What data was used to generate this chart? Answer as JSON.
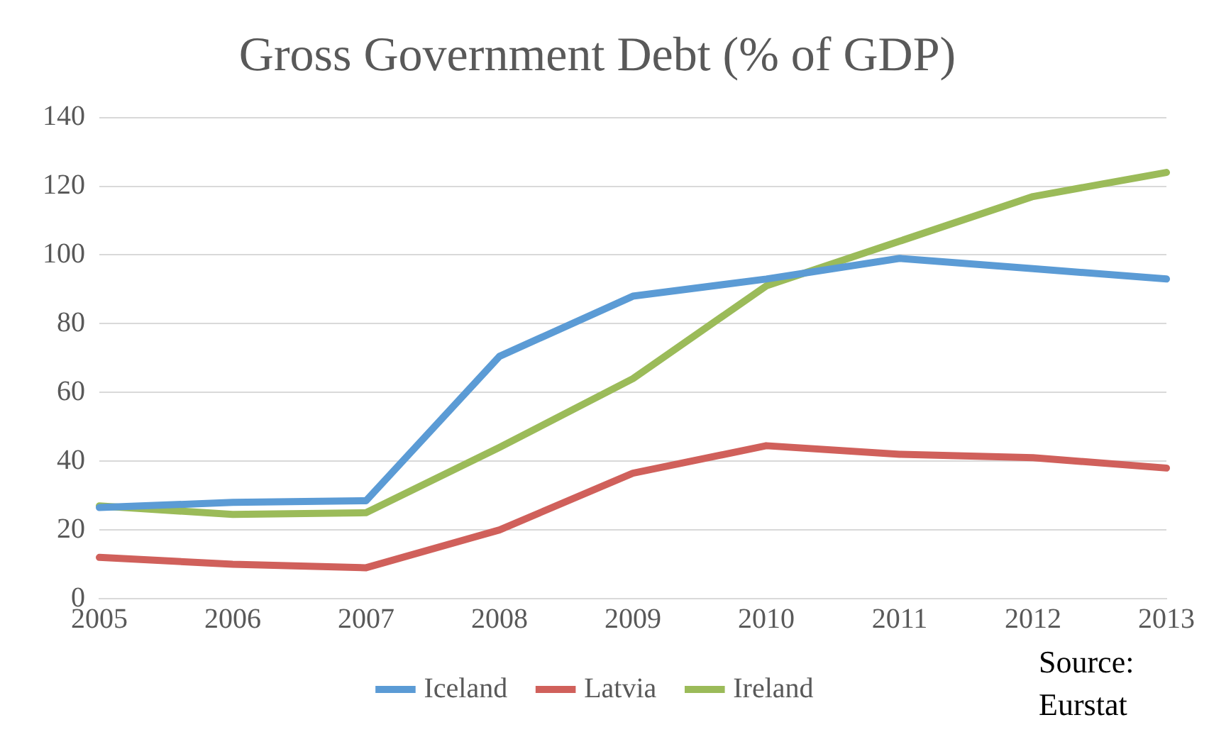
{
  "chart_data": {
    "type": "line",
    "title": "Gross Government Debt (% of GDP)",
    "categories": [
      "2005",
      "2006",
      "2007",
      "2008",
      "2009",
      "2010",
      "2011",
      "2012",
      "2013"
    ],
    "series": [
      {
        "name": "Iceland",
        "color": "#5b9bd5",
        "values": [
          26.5,
          28,
          28.5,
          70.5,
          88,
          93,
          99,
          96,
          93
        ]
      },
      {
        "name": "Latvia",
        "color": "#d0605b",
        "values": [
          12,
          10,
          9,
          20,
          36.5,
          44.5,
          42,
          41,
          38
        ]
      },
      {
        "name": "Ireland",
        "color": "#9bbb59",
        "values": [
          27,
          24.5,
          25,
          44,
          64,
          91,
          104,
          117,
          124
        ]
      }
    ],
    "ylim": [
      0,
      140
    ],
    "yticks": [
      0,
      20,
      40,
      60,
      80,
      100,
      120,
      140
    ],
    "grid": "y",
    "legend": "bottom",
    "marker": "none",
    "line_style": "solid",
    "annotations": [
      "Source: Eurstat"
    ]
  }
}
